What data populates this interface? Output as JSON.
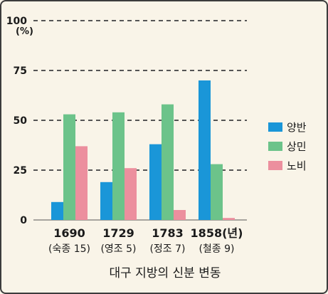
{
  "chart_data": {
    "type": "bar",
    "title": "대구 지방의 신분 변동",
    "ylabel_unit": "(%)",
    "ylim": [
      0,
      100
    ],
    "yticks": [
      "0",
      "25",
      "50",
      "75",
      "100"
    ],
    "categories": [
      "1690",
      "1729",
      "1783",
      "1858(년)"
    ],
    "category_sublabels": [
      "(숙종 15)",
      "(영조 5)",
      "(정조 7)",
      "(철종 9)"
    ],
    "series": [
      {
        "name": "양반",
        "color": "#1a96d8",
        "values": [
          9,
          19,
          38,
          70
        ]
      },
      {
        "name": "상민",
        "color": "#6cc38a",
        "values": [
          53,
          54,
          58,
          28
        ]
      },
      {
        "name": "노비",
        "color": "#ec8f9e",
        "values": [
          37,
          26,
          5,
          1
        ]
      }
    ],
    "grid": "dashed horizontal",
    "legend": "right"
  }
}
